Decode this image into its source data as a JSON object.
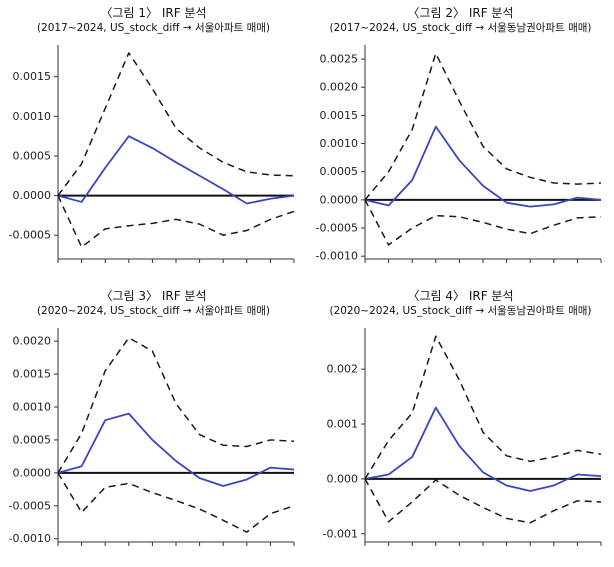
{
  "page": {
    "background": "#ffffff"
  },
  "style": {
    "irf_color": "#3a46c0",
    "band_color": "#1a1a1a",
    "axis_color": "#333333",
    "zero_line_color": "#111111"
  },
  "chart_data": [
    {
      "type": "line",
      "title": "〈그림 1〉 IRF 분석",
      "subtitle": "(2017~2024, US_stock_diff → 서울아파트 매매)",
      "x": [
        0,
        1,
        2,
        3,
        4,
        5,
        6,
        7,
        8,
        9,
        10
      ],
      "ylim": [
        -0.0008,
        0.0019
      ],
      "grid": false,
      "legend": "none",
      "zero_line": true,
      "yticks": [
        {
          "value": -0.0005,
          "label": "-0.0005"
        },
        {
          "value": 0.0,
          "label": "0.0000"
        },
        {
          "value": 0.0005,
          "label": "0.0005"
        },
        {
          "value": 0.001,
          "label": "0.0010"
        },
        {
          "value": 0.0015,
          "label": "0.0015"
        }
      ],
      "series": [
        {
          "name": "irf",
          "style": "solid",
          "values": [
            0,
            -8e-05,
            0.00035,
            0.00075,
            0.0006,
            0.00042,
            0.00025,
            8e-05,
            -0.0001,
            -4e-05,
            0.0
          ]
        },
        {
          "name": "upper-band",
          "style": "dashed",
          "values": [
            0,
            0.0004,
            0.0011,
            0.0018,
            0.00135,
            0.00085,
            0.0006,
            0.00042,
            0.0003,
            0.00026,
            0.00025
          ]
        },
        {
          "name": "lower-band",
          "style": "dashed",
          "values": [
            0,
            -0.00065,
            -0.00042,
            -0.00038,
            -0.00035,
            -0.0003,
            -0.00036,
            -0.0005,
            -0.00044,
            -0.0003,
            -0.0002
          ]
        }
      ]
    },
    {
      "type": "line",
      "title": "〈그림 2〉 IRF 분석",
      "subtitle": "(2017~2024, US_stock_diff → 서울동남권아파트 매매)",
      "x": [
        0,
        1,
        2,
        3,
        4,
        5,
        6,
        7,
        8,
        9,
        10
      ],
      "ylim": [
        -0.00105,
        0.00275
      ],
      "grid": false,
      "legend": "none",
      "zero_line": true,
      "yticks": [
        {
          "value": -0.001,
          "label": "-0.0010"
        },
        {
          "value": -0.0005,
          "label": "-0.0005"
        },
        {
          "value": 0.0,
          "label": "0.0000"
        },
        {
          "value": 0.0005,
          "label": "0.0005"
        },
        {
          "value": 0.001,
          "label": "0.0010"
        },
        {
          "value": 0.0015,
          "label": "0.0015"
        },
        {
          "value": 0.002,
          "label": "0.0020"
        },
        {
          "value": 0.0025,
          "label": "0.0025"
        }
      ],
      "series": [
        {
          "name": "irf",
          "style": "solid",
          "values": [
            0,
            -0.0001,
            0.00035,
            0.0013,
            0.0007,
            0.00025,
            -5e-05,
            -0.00012,
            -8e-05,
            4e-05,
            0.0
          ]
        },
        {
          "name": "upper-band",
          "style": "dashed",
          "values": [
            0,
            0.0005,
            0.00125,
            0.0026,
            0.00175,
            0.00095,
            0.00055,
            0.0004,
            0.0003,
            0.00028,
            0.0003
          ]
        },
        {
          "name": "lower-band",
          "style": "dashed",
          "values": [
            0,
            -0.0008,
            -0.0005,
            -0.00028,
            -0.0003,
            -0.0004,
            -0.00052,
            -0.0006,
            -0.00045,
            -0.00032,
            -0.0003
          ]
        }
      ]
    },
    {
      "type": "line",
      "title": "〈그림 3〉 IRF 분석",
      "subtitle": "(2020~2024, US_stock_diff → 서울아파트 매매)",
      "x": [
        0,
        1,
        2,
        3,
        4,
        5,
        6,
        7,
        8,
        9,
        10
      ],
      "ylim": [
        -0.00105,
        0.0022
      ],
      "grid": false,
      "legend": "none",
      "zero_line": true,
      "yticks": [
        {
          "value": -0.001,
          "label": "-0.0010"
        },
        {
          "value": -0.0005,
          "label": "-0.0005"
        },
        {
          "value": 0.0,
          "label": "0.0000"
        },
        {
          "value": 0.0005,
          "label": "0.0005"
        },
        {
          "value": 0.001,
          "label": "0.0010"
        },
        {
          "value": 0.0015,
          "label": "0.0015"
        },
        {
          "value": 0.002,
          "label": "0.0020"
        }
      ],
      "series": [
        {
          "name": "irf",
          "style": "solid",
          "values": [
            0,
            0.0001,
            0.0008,
            0.0009,
            0.0005,
            0.00018,
            -8e-05,
            -0.0002,
            -0.0001,
            8e-05,
            5e-05
          ]
        },
        {
          "name": "upper-band",
          "style": "dashed",
          "values": [
            0,
            0.0006,
            0.00155,
            0.00205,
            0.00185,
            0.00105,
            0.00058,
            0.00042,
            0.0004,
            0.0005,
            0.00048
          ]
        },
        {
          "name": "lower-band",
          "style": "dashed",
          "values": [
            0,
            -0.0006,
            -0.00022,
            -0.00016,
            -0.0003,
            -0.00042,
            -0.00055,
            -0.00072,
            -0.0009,
            -0.00062,
            -0.0005
          ]
        }
      ]
    },
    {
      "type": "line",
      "title": "〈그림 4〉 IRF 분석",
      "subtitle": "(2020~2024, US_stock_diff → 서울동남권아파트 매매)",
      "x": [
        0,
        1,
        2,
        3,
        4,
        5,
        6,
        7,
        8,
        9,
        10
      ],
      "ylim": [
        -0.00115,
        0.00275
      ],
      "grid": false,
      "legend": "none",
      "zero_line": true,
      "yticks": [
        {
          "value": -0.001,
          "label": "-0.001"
        },
        {
          "value": 0.0,
          "label": "0.000"
        },
        {
          "value": 0.001,
          "label": "0.001"
        },
        {
          "value": 0.002,
          "label": "0.002"
        }
      ],
      "series": [
        {
          "name": "irf",
          "style": "solid",
          "values": [
            0,
            8e-05,
            0.0004,
            0.0013,
            0.0006,
            0.00012,
            -0.00012,
            -0.00022,
            -0.00012,
            8e-05,
            5e-05
          ]
        },
        {
          "name": "upper-band",
          "style": "dashed",
          "values": [
            0,
            0.0007,
            0.0012,
            0.0026,
            0.0018,
            0.00085,
            0.00042,
            0.00032,
            0.0004,
            0.00052,
            0.00045
          ]
        },
        {
          "name": "lower-band",
          "style": "dashed",
          "values": [
            0,
            -0.00078,
            -0.00042,
            -2e-05,
            -0.0003,
            -0.00052,
            -0.00072,
            -0.0008,
            -0.00058,
            -0.0004,
            -0.00042
          ]
        }
      ]
    }
  ]
}
